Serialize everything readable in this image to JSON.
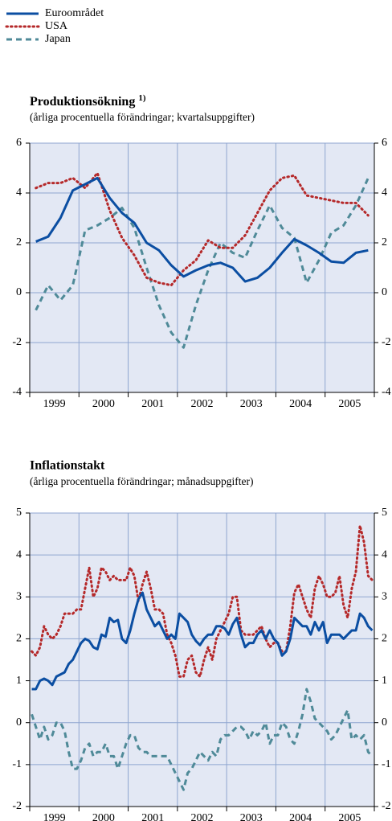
{
  "chart_data": [
    {
      "type": "line",
      "title": "Produktionsökning",
      "title_note": "1)",
      "subtitle": "(årliga procentuella förändringar; kvartalsuppgifter)",
      "categories": [
        "1999",
        null,
        null,
        null,
        "2000",
        null,
        null,
        null,
        "2001",
        null,
        null,
        null,
        "2002",
        null,
        null,
        null,
        "2003",
        null,
        null,
        null,
        "2004",
        null,
        null,
        null,
        "2005",
        null,
        null,
        null
      ],
      "series": [
        {
          "name": "Euroområdet",
          "color": "#0b4ea2",
          "style": "solid",
          "values": [
            2.05,
            2.25,
            3.0,
            4.1,
            4.35,
            4.6,
            3.8,
            3.2,
            2.8,
            2.0,
            1.7,
            1.1,
            0.65,
            0.9,
            1.1,
            1.2,
            1.0,
            0.45,
            0.6,
            1.0,
            1.6,
            2.15,
            1.9,
            1.6,
            1.25,
            1.2,
            1.6,
            1.7
          ]
        },
        {
          "name": "USA",
          "color": "#b5292a",
          "style": "dotted",
          "values": [
            4.2,
            4.4,
            4.4,
            4.6,
            4.2,
            4.8,
            3.3,
            2.2,
            1.5,
            0.6,
            0.4,
            0.3,
            0.9,
            1.3,
            2.1,
            1.8,
            1.8,
            2.3,
            3.2,
            4.1,
            4.6,
            4.7,
            3.9,
            3.8,
            3.7,
            3.6,
            3.6,
            3.1
          ]
        },
        {
          "name": "Japan",
          "color": "#4f8a98",
          "style": "dashed",
          "values": [
            -0.7,
            0.3,
            -0.3,
            0.3,
            2.5,
            2.7,
            3.0,
            3.4,
            2.6,
            1.0,
            -0.5,
            -1.6,
            -2.2,
            -0.5,
            0.9,
            2.0,
            1.6,
            1.4,
            2.5,
            3.5,
            2.6,
            2.2,
            0.4,
            1.3,
            2.4,
            2.7,
            3.5,
            4.6
          ]
        }
      ],
      "ylim": [
        -4,
        6
      ],
      "yticks": [
        -4,
        -2,
        0,
        2,
        4,
        6
      ],
      "grid": true
    },
    {
      "type": "line",
      "title": "Inflationstakt",
      "subtitle": "(årliga procentuella förändringar; månadsuppgifter)",
      "categories": [
        "1999",
        null,
        null,
        null,
        null,
        null,
        null,
        null,
        null,
        null,
        null,
        null,
        "2000",
        null,
        null,
        null,
        null,
        null,
        null,
        null,
        null,
        null,
        null,
        null,
        "2001",
        null,
        null,
        null,
        null,
        null,
        null,
        null,
        null,
        null,
        null,
        null,
        "2002",
        null,
        null,
        null,
        null,
        null,
        null,
        null,
        null,
        null,
        null,
        null,
        "2003",
        null,
        null,
        null,
        null,
        null,
        null,
        null,
        null,
        null,
        null,
        null,
        "2004",
        null,
        null,
        null,
        null,
        null,
        null,
        null,
        null,
        null,
        null,
        null,
        "2005",
        null,
        null,
        null,
        null,
        null,
        null,
        null,
        null,
        null,
        null,
        null
      ],
      "series": [
        {
          "name": "Euroområdet",
          "color": "#0b4ea2",
          "style": "solid",
          "values": [
            0.8,
            0.8,
            1.0,
            1.05,
            1.0,
            0.9,
            1.1,
            1.15,
            1.2,
            1.4,
            1.5,
            1.7,
            1.9,
            2.0,
            1.95,
            1.8,
            1.75,
            2.1,
            2.05,
            2.5,
            2.4,
            2.45,
            2.0,
            1.9,
            2.2,
            2.6,
            2.95,
            3.1,
            2.7,
            2.5,
            2.3,
            2.4,
            2.2,
            2.0,
            2.1,
            2.0,
            2.6,
            2.5,
            2.4,
            2.1,
            1.95,
            1.85,
            2.0,
            2.1,
            2.1,
            2.3,
            2.3,
            2.25,
            2.1,
            2.35,
            2.5,
            2.1,
            1.8,
            1.9,
            1.9,
            2.1,
            2.2,
            2.0,
            2.2,
            2.0,
            1.9,
            1.6,
            1.7,
            2.0,
            2.5,
            2.4,
            2.3,
            2.3,
            2.1,
            2.4,
            2.2,
            2.4,
            1.9,
            2.1,
            2.1,
            2.1,
            2.0,
            2.1,
            2.2,
            2.2,
            2.6,
            2.5,
            2.3,
            2.2
          ]
        },
        {
          "name": "USA",
          "color": "#b5292a",
          "style": "dotted",
          "values": [
            1.7,
            1.6,
            1.8,
            2.3,
            2.1,
            2.0,
            2.1,
            2.3,
            2.6,
            2.6,
            2.6,
            2.7,
            2.7,
            3.2,
            3.7,
            3.0,
            3.2,
            3.7,
            3.6,
            3.4,
            3.5,
            3.4,
            3.4,
            3.4,
            3.7,
            3.5,
            2.9,
            3.3,
            3.6,
            3.2,
            2.7,
            2.7,
            2.6,
            2.1,
            1.9,
            1.6,
            1.1,
            1.1,
            1.5,
            1.6,
            1.2,
            1.1,
            1.5,
            1.8,
            1.5,
            2.0,
            2.2,
            2.4,
            2.6,
            3.0,
            3.0,
            2.2,
            2.1,
            2.1,
            2.1,
            2.2,
            2.3,
            2.0,
            1.8,
            1.9,
            1.9,
            1.7,
            1.7,
            2.3,
            3.1,
            3.3,
            3.0,
            2.7,
            2.5,
            3.2,
            3.5,
            3.3,
            3.0,
            3.0,
            3.1,
            3.5,
            2.8,
            2.5,
            3.2,
            3.6,
            4.7,
            4.3,
            3.5,
            3.4
          ]
        },
        {
          "name": "Japan",
          "color": "#4f8a98",
          "style": "dashed",
          "values": [
            0.2,
            -0.1,
            -0.4,
            -0.1,
            -0.4,
            -0.3,
            0.0,
            0.0,
            -0.2,
            -0.7,
            -1.1,
            -1.1,
            -0.9,
            -0.6,
            -0.5,
            -0.8,
            -0.7,
            -0.7,
            -0.5,
            -0.8,
            -0.8,
            -1.1,
            -0.8,
            -0.5,
            -0.3,
            -0.3,
            -0.6,
            -0.7,
            -0.7,
            -0.8,
            -0.8,
            -0.8,
            -0.8,
            -0.8,
            -1.0,
            -1.2,
            -1.4,
            -1.6,
            -1.2,
            -1.1,
            -0.9,
            -0.7,
            -0.8,
            -0.9,
            -0.7,
            -0.8,
            -0.4,
            -0.3,
            -0.3,
            -0.2,
            -0.1,
            -0.1,
            -0.2,
            -0.4,
            -0.2,
            -0.3,
            -0.2,
            0.0,
            -0.5,
            -0.3,
            -0.3,
            0.0,
            -0.1,
            -0.4,
            -0.5,
            -0.2,
            0.2,
            0.8,
            0.5,
            0.1,
            0.0,
            -0.1,
            -0.2,
            -0.4,
            -0.3,
            -0.1,
            0.1,
            0.3,
            -0.4,
            -0.3,
            -0.4,
            -0.3,
            -0.7,
            -0.8
          ]
        }
      ],
      "ylim": [
        -2,
        5
      ],
      "yticks": [
        -2,
        -1,
        0,
        1,
        2,
        3,
        4,
        5
      ],
      "grid": true
    }
  ]
}
